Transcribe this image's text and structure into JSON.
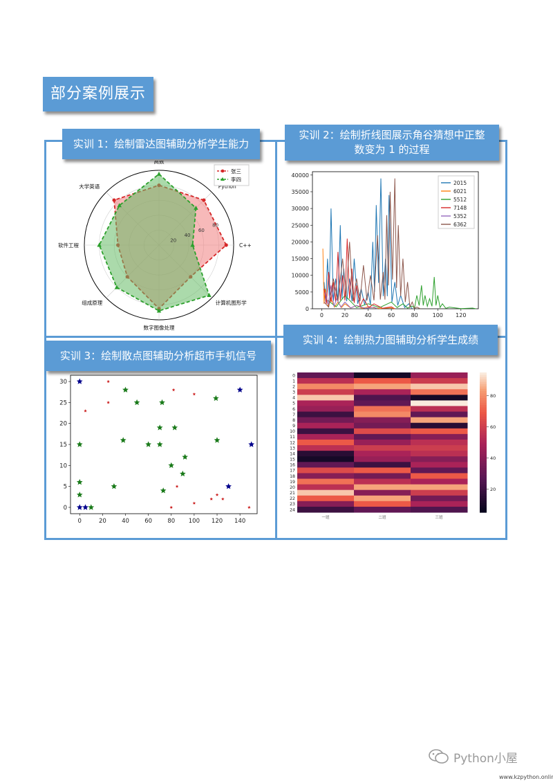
{
  "title": "部分案例展示",
  "sections": [
    "实训 1：绘制雷达图辅助分析学生能力",
    "实训 2：绘制折线图展示角谷猜想中正整",
    "数变为 1 的过程",
    "实训 3：绘制散点图辅助分析超市手机信号",
    "实训 4：绘制热力图辅助分析学生成绩"
  ],
  "watermark": "Python小屋",
  "url": "www.kzpython.online",
  "chart_data": [
    {
      "type": "radar",
      "categories": [
        "高数",
        "Python",
        "C++",
        "计算机图形学",
        "数字图像处理",
        "组成原理",
        "软件工程",
        "大学英语"
      ],
      "rticks": [
        "20",
        "40",
        "60",
        "80"
      ],
      "rmax": 100,
      "series": [
        {
          "name": "张三",
          "values": [
            80,
            85,
            90,
            60,
            85,
            60,
            55,
            85
          ],
          "color": "#d62728",
          "fill": "#f08080"
        },
        {
          "name": "李四",
          "values": [
            95,
            70,
            45,
            95,
            88,
            80,
            80,
            75
          ],
          "color": "#2ca02c",
          "fill": "#66bb66"
        }
      ]
    },
    {
      "type": "line",
      "yticks": [
        0,
        5000,
        10000,
        15000,
        20000,
        25000,
        30000,
        35000,
        40000
      ],
      "xticks": [
        0,
        20,
        40,
        60,
        80,
        100,
        120
      ],
      "series": [
        {
          "name": "2015",
          "color": "#1f77b4",
          "peaks": [
            [
              2,
              8000
            ],
            [
              5,
              15000
            ],
            [
              8,
              30000
            ],
            [
              12,
              9000
            ],
            [
              16,
              25000
            ],
            [
              19,
              12000
            ],
            [
              24,
              9000
            ],
            [
              28,
              15000
            ],
            [
              34,
              6000
            ],
            [
              40,
              5000
            ],
            [
              44,
              20000
            ],
            [
              47,
              31000
            ],
            [
              51,
              39000
            ],
            [
              55,
              15000
            ],
            [
              58,
              34000
            ],
            [
              63,
              8000
            ],
            [
              68,
              4000
            ],
            [
              75,
              1500
            ]
          ]
        },
        {
          "name": "6021",
          "color": "#ff7f0e",
          "peaks": [
            [
              1,
              18000
            ],
            [
              3,
              6000
            ],
            [
              8,
              3000
            ],
            [
              14,
              2000
            ],
            [
              20,
              1500
            ],
            [
              30,
              1000
            ],
            [
              40,
              600
            ],
            [
              60,
              300
            ]
          ]
        },
        {
          "name": "5512",
          "color": "#2ca02c",
          "peaks": [
            [
              5,
              2500
            ],
            [
              20,
              4000
            ],
            [
              40,
              1500
            ],
            [
              60,
              2000
            ],
            [
              70,
              1500
            ],
            [
              78,
              800
            ],
            [
              82,
              4000
            ],
            [
              86,
              7000
            ],
            [
              89,
              4000
            ],
            [
              93,
              3000
            ],
            [
              97,
              9500
            ],
            [
              100,
              4000
            ],
            [
              104,
              1500
            ],
            [
              110,
              500
            ],
            [
              130,
              200
            ]
          ]
        },
        {
          "name": "7148",
          "color": "#d62728",
          "peaks": [
            [
              2,
              6000
            ],
            [
              6,
              11000
            ],
            [
              10,
              8000
            ],
            [
              14,
              17000
            ],
            [
              18,
              10000
            ],
            [
              22,
              21000
            ],
            [
              26,
              12000
            ],
            [
              30,
              7000
            ],
            [
              36,
              3000
            ],
            [
              45,
              1500
            ],
            [
              60,
              600
            ]
          ]
        },
        {
          "name": "5352",
          "color": "#9467bd",
          "peaks": [
            [
              3,
              5000
            ],
            [
              8,
              7000
            ],
            [
              13,
              3000
            ],
            [
              20,
              2000
            ],
            [
              30,
              1000
            ],
            [
              45,
              500
            ]
          ]
        },
        {
          "name": "6362",
          "color": "#8c564b",
          "peaks": [
            [
              2,
              2000
            ],
            [
              10,
              9000
            ],
            [
              18,
              15000
            ],
            [
              24,
              20000
            ],
            [
              30,
              9000
            ],
            [
              36,
              13000
            ],
            [
              42,
              10000
            ],
            [
              48,
              22000
            ],
            [
              53,
              11000
            ],
            [
              56,
              28000
            ],
            [
              59,
              35000
            ],
            [
              63,
              39000
            ],
            [
              66,
              25000
            ],
            [
              70,
              15000
            ],
            [
              74,
              8000
            ],
            [
              78,
              2000
            ],
            [
              82,
              500
            ]
          ]
        }
      ]
    },
    {
      "type": "scatter",
      "xticks": [
        0,
        20,
        40,
        60,
        80,
        100,
        120,
        140
      ],
      "yticks": [
        0,
        5,
        10,
        15,
        20,
        25,
        30
      ],
      "points": [
        [
          0,
          30,
          "#00008b",
          2
        ],
        [
          25,
          30,
          "#cc2222",
          1
        ],
        [
          5,
          23,
          "#cc2222",
          1
        ],
        [
          25,
          25,
          "#cc2222",
          1
        ],
        [
          40,
          28,
          "#1a7a1a",
          2
        ],
        [
          50,
          25,
          "#1a7a1a",
          2
        ],
        [
          72,
          25,
          "#1a7a1a",
          2
        ],
        [
          82,
          28,
          "#cc2222",
          1
        ],
        [
          100,
          27,
          "#cc2222",
          1
        ],
        [
          119,
          26,
          "#1a7a1a",
          2
        ],
        [
          140,
          28,
          "#00008b",
          2
        ],
        [
          70,
          19,
          "#1a7a1a",
          2
        ],
        [
          83,
          19,
          "#1a7a1a",
          2
        ],
        [
          38,
          16,
          "#1a7a1a",
          2
        ],
        [
          60,
          15,
          "#1a7a1a",
          2
        ],
        [
          70,
          15,
          "#1a7a1a",
          2
        ],
        [
          120,
          16,
          "#1a7a1a",
          2
        ],
        [
          0,
          15,
          "#1a7a1a",
          2
        ],
        [
          150,
          15,
          "#00008b",
          2
        ],
        [
          92,
          12,
          "#1a7a1a",
          2
        ],
        [
          80,
          10,
          "#1a7a1a",
          2
        ],
        [
          90,
          8,
          "#1a7a1a",
          2
        ],
        [
          0,
          6,
          "#1a7a1a",
          2
        ],
        [
          30,
          5,
          "#1a7a1a",
          2
        ],
        [
          73,
          4,
          "#1a7a1a",
          2
        ],
        [
          85,
          5,
          "#cc2222",
          1
        ],
        [
          130,
          5,
          "#00008b",
          2
        ],
        [
          0,
          3,
          "#1a7a1a",
          2
        ],
        [
          115,
          2,
          "#cc2222",
          1
        ],
        [
          120,
          3,
          "#cc2222",
          1
        ],
        [
          125,
          2,
          "#cc2222",
          1
        ],
        [
          100,
          1,
          "#cc2222",
          1
        ],
        [
          0,
          0,
          "#00008b",
          2
        ],
        [
          5,
          0,
          "#00008b",
          2
        ],
        [
          10,
          0,
          "#1a7a1a",
          2
        ],
        [
          80,
          0,
          "#cc2222",
          1
        ],
        [
          148,
          0,
          "#cc2222",
          1
        ]
      ]
    },
    {
      "type": "heatmap",
      "rows": [
        "0",
        "1",
        "2",
        "3",
        "4",
        "5",
        "6",
        "7",
        "8",
        "9",
        "10",
        "11",
        "12",
        "13",
        "14",
        "15",
        "16",
        "17",
        "18",
        "19",
        "20",
        "21",
        "22",
        "23",
        "24"
      ],
      "columns": [
        "一班",
        "二班",
        "三班"
      ],
      "colorbar_ticks": [
        20,
        40,
        60,
        80
      ],
      "values": [
        [
          30,
          10,
          45
        ],
        [
          55,
          70,
          60
        ],
        [
          80,
          85,
          90
        ],
        [
          60,
          50,
          75
        ],
        [
          90,
          25,
          10
        ],
        [
          50,
          30,
          95
        ],
        [
          45,
          75,
          55
        ],
        [
          20,
          80,
          30
        ],
        [
          35,
          40,
          85
        ],
        [
          50,
          35,
          15
        ],
        [
          20,
          65,
          70
        ],
        [
          50,
          30,
          40
        ],
        [
          70,
          45,
          55
        ],
        [
          55,
          60,
          60
        ],
        [
          15,
          50,
          55
        ],
        [
          10,
          45,
          40
        ],
        [
          30,
          20,
          50
        ],
        [
          65,
          70,
          30
        ],
        [
          40,
          35,
          70
        ],
        [
          75,
          55,
          50
        ],
        [
          55,
          85,
          85
        ],
        [
          90,
          40,
          60
        ],
        [
          70,
          85,
          35
        ],
        [
          40,
          70,
          50
        ],
        [
          20,
          30,
          25
        ]
      ],
      "vmin": 5,
      "vmax": 95
    }
  ]
}
